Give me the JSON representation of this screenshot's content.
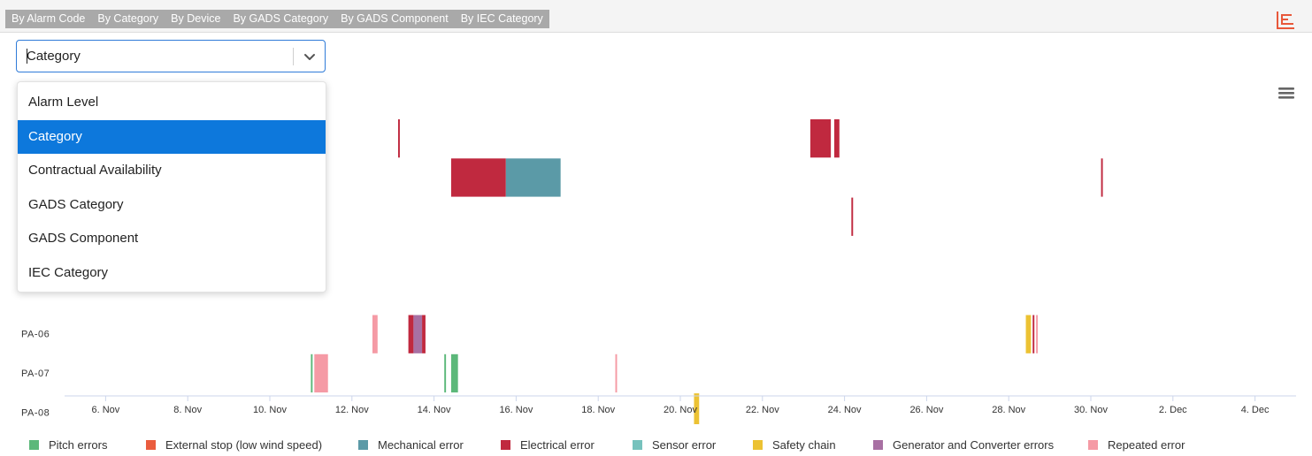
{
  "tabs": [
    "By Alarm Code",
    "By Category",
    "By Device",
    "By GADS Category",
    "By GADS Component",
    "By IEC Category"
  ],
  "select": {
    "value": "Category",
    "options": [
      "Alarm Level",
      "Category",
      "Contractual Availability",
      "GADS Category",
      "GADS Component",
      "IEC Category"
    ],
    "selected_index": 1
  },
  "chart_data": {
    "type": "timeline",
    "devices": [
      "PA-06",
      "PA-07",
      "PA-08"
    ],
    "x_ticks": [
      "6. Nov",
      "8. Nov",
      "10. Nov",
      "12. Nov",
      "14. Nov",
      "16. Nov",
      "18. Nov",
      "20. Nov",
      "22. Nov",
      "24. Nov",
      "26. Nov",
      "28. Nov",
      "30. Nov",
      "2. Dec",
      "4. Dec"
    ],
    "x_range": [
      "2023-11-05",
      "2023-12-05"
    ],
    "series": [
      {
        "name": "Pitch errors",
        "color": "#5cb87a"
      },
      {
        "name": "External stop (low wind speed)",
        "color": "#ea5c3e"
      },
      {
        "name": "Mechanical error",
        "color": "#5b9aa7"
      },
      {
        "name": "Electrical error",
        "color": "#c0293f"
      },
      {
        "name": "Sensor error",
        "color": "#76c2bd"
      },
      {
        "name": "Safety chain",
        "color": "#ecc233"
      },
      {
        "name": "Generator and Converter errors",
        "color": "#a870a3"
      },
      {
        "name": "Repeated error",
        "color": "#f59aa5"
      }
    ],
    "events": [
      {
        "row": 0,
        "series": "Electrical error",
        "start": "2023-11-23 04:00",
        "end": "2023-11-23 16:00"
      },
      {
        "row": 0,
        "series": "Electrical error",
        "start": "2023-11-23 18:00",
        "end": "2023-11-23 21:00"
      },
      {
        "row": 0,
        "series": "Electrical error",
        "start": "2023-11-13 03:00",
        "end": "2023-11-13 04:00"
      },
      {
        "row": 1,
        "series": "Electrical error",
        "start": "2023-11-14 10:00",
        "end": "2023-11-15 18:00"
      },
      {
        "row": 1,
        "series": "Mechanical error",
        "start": "2023-11-15 18:00",
        "end": "2023-11-17 02:00"
      },
      {
        "row": 1,
        "series": "Electrical error",
        "start": "2023-11-30 06:00",
        "end": "2023-11-30 07:00"
      },
      {
        "row": 2,
        "series": "Electrical error",
        "start": "2023-11-24 04:00",
        "end": "2023-11-24 05:00"
      },
      {
        "row": 5,
        "series": "Repeated error",
        "start": "2023-11-12 12:00",
        "end": "2023-11-12 15:00"
      },
      {
        "row": 5,
        "series": "Electrical error",
        "start": "2023-11-13 09:00",
        "end": "2023-11-13 12:00"
      },
      {
        "row": 5,
        "series": "Generator and Converter errors",
        "start": "2023-11-13 12:00",
        "end": "2023-11-13 17:00"
      },
      {
        "row": 5,
        "series": "Electrical error",
        "start": "2023-11-13 17:00",
        "end": "2023-11-13 19:00"
      },
      {
        "row": 5,
        "series": "Safety chain",
        "start": "2023-11-28 10:00",
        "end": "2023-11-28 13:00"
      },
      {
        "row": 5,
        "series": "Electrical error",
        "start": "2023-11-28 14:00",
        "end": "2023-11-28 15:00"
      },
      {
        "row": 5,
        "series": "Repeated error",
        "start": "2023-11-28 16:00",
        "end": "2023-11-28 17:00"
      },
      {
        "row": 6,
        "series": "Pitch errors",
        "start": "2023-11-11 00:00",
        "end": "2023-11-11 01:00"
      },
      {
        "row": 6,
        "series": "Repeated error",
        "start": "2023-11-11 02:00",
        "end": "2023-11-11 10:00"
      },
      {
        "row": 6,
        "series": "Pitch errors",
        "start": "2023-11-14 06:00",
        "end": "2023-11-14 07:00"
      },
      {
        "row": 6,
        "series": "Pitch errors",
        "start": "2023-11-14 10:00",
        "end": "2023-11-14 14:00"
      },
      {
        "row": 6,
        "series": "Repeated error",
        "start": "2023-11-18 10:00",
        "end": "2023-11-18 11:00"
      },
      {
        "row": 7,
        "series": "Safety chain",
        "start": "2023-11-20 08:00",
        "end": "2023-11-20 11:00"
      }
    ]
  },
  "icons": {
    "logo": "brand-logo-icon",
    "chart_menu": "hamburger-menu-icon",
    "select_arrow": "chevron-down-icon"
  }
}
